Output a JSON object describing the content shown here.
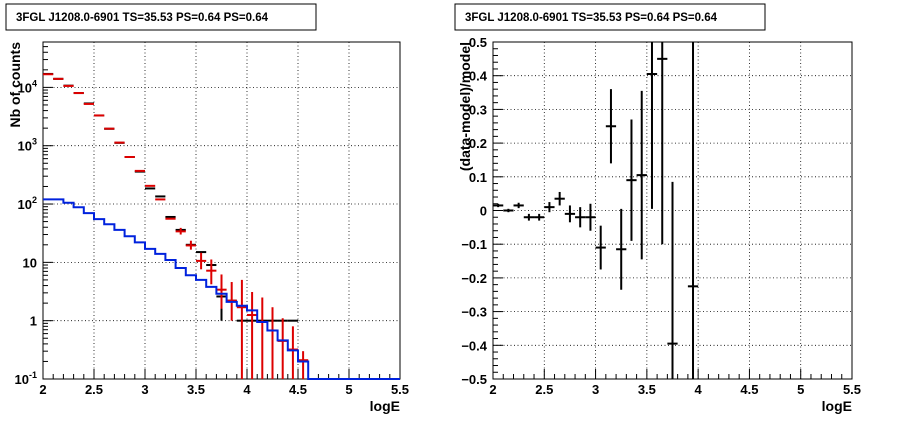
{
  "chart_data": [
    {
      "type": "scatter",
      "title": "3FGL J1208.0-6901 TS=35.53 PS=0.64 PS=0.64",
      "xlabel": "logE",
      "ylabel": "Nb of counts",
      "xlim": [
        2,
        5.5
      ],
      "ylim": [
        0.1,
        60000
      ],
      "yscale": "log",
      "grid": true,
      "x_ticks": [
        "2",
        "2.5",
        "3",
        "3.5",
        "4",
        "4.5",
        "5",
        "5.5"
      ],
      "y_ticks": [
        {
          "value": 0.1,
          "label": "10",
          "exp": "-1"
        },
        {
          "value": 1,
          "label": "1",
          "exp": ""
        },
        {
          "value": 10,
          "label": "10",
          "exp": ""
        },
        {
          "value": 100,
          "label": "10",
          "exp": "2"
        },
        {
          "value": 1000,
          "label": "10",
          "exp": "3"
        },
        {
          "value": 10000,
          "label": "10",
          "exp": "4"
        }
      ],
      "series": [
        {
          "kind": "data_points",
          "color": "#000000",
          "x": [
            2.05,
            2.15,
            2.25,
            2.35,
            2.45,
            2.55,
            2.65,
            2.75,
            2.85,
            2.95,
            3.05,
            3.15,
            3.25,
            3.35,
            3.45,
            3.55,
            3.65,
            3.75,
            3.85,
            3.95,
            4.05,
            4.15,
            4.25,
            4.35,
            4.45
          ],
          "y": [
            17000,
            14000,
            10700,
            8000,
            5300,
            3300,
            1950,
            1120,
            640,
            360,
            185,
            135,
            60,
            36,
            20,
            15,
            9,
            2.6,
            2.2,
            1,
            1,
            1,
            1,
            1,
            1
          ],
          "xerr": 0.05,
          "yerr_lo": [
            0,
            0,
            0,
            0,
            0,
            0,
            0,
            0,
            0,
            0,
            0,
            0,
            0,
            0,
            0,
            0,
            0,
            1.6,
            0,
            0,
            0,
            0,
            0,
            0,
            0
          ],
          "yerr_hi": [
            0,
            0,
            0,
            0,
            0,
            0,
            0,
            0,
            0,
            0,
            0,
            0,
            0,
            0,
            0,
            0,
            0,
            2.4,
            0,
            0,
            0,
            0,
            0,
            0,
            0
          ]
        },
        {
          "kind": "model_points",
          "color": "#dd0000",
          "x": [
            2.05,
            2.15,
            2.25,
            2.35,
            2.45,
            2.55,
            2.65,
            2.75,
            2.85,
            2.95,
            3.05,
            3.15,
            3.25,
            3.35,
            3.45,
            3.55,
            3.65,
            3.75,
            3.85,
            3.95,
            4.05,
            4.15,
            4.25,
            4.35,
            4.45,
            4.55
          ],
          "y": [
            16800,
            14000,
            10600,
            8000,
            5200,
            3300,
            1960,
            1130,
            640,
            370,
            205,
            120,
            56,
            34,
            19.5,
            10.6,
            7.2,
            3.4,
            2.2,
            1.7,
            1.25,
            0.95,
            0.68,
            0.45,
            0.32,
            0.21
          ],
          "xerr": 0.05,
          "yerr_lo": [
            0,
            0,
            0,
            0,
            0,
            0,
            0,
            0,
            0,
            0,
            0,
            0,
            0,
            4,
            3,
            3,
            3,
            1.8,
            1.2,
            1.7,
            1.15,
            0.85,
            0.58,
            0.35,
            0.22,
            0.11
          ],
          "yerr_hi": [
            0,
            0,
            0,
            0,
            0,
            0,
            0,
            0,
            0,
            0,
            0,
            0,
            0,
            5,
            4,
            4,
            4,
            2.8,
            2.4,
            3.3,
            1.85,
            1.55,
            1.02,
            0.65,
            0.48,
            0.09
          ]
        },
        {
          "kind": "step_line",
          "color": "#0022dd",
          "edges": [
            2.0,
            2.1,
            2.2,
            2.3,
            2.4,
            2.5,
            2.6,
            2.7,
            2.8,
            2.9,
            3.0,
            3.1,
            3.2,
            3.3,
            3.4,
            3.5,
            3.6,
            3.7,
            3.8,
            3.9,
            4.0,
            4.1,
            4.2,
            4.3,
            4.4,
            4.5,
            4.6,
            4.7,
            4.8,
            4.9,
            5.0,
            5.1,
            5.2,
            5.3,
            5.4,
            5.5
          ],
          "values": [
            120,
            120,
            105,
            88,
            70,
            55,
            45,
            36,
            28,
            22,
            17,
            14,
            11,
            8,
            6,
            5,
            3.8,
            2.9,
            2.1,
            1.8,
            1.5,
            0.95,
            0.68,
            0.46,
            0.31,
            0.2,
            0.1,
            0.1,
            0.1,
            0.1,
            0.1,
            0.1,
            0.1,
            0.1,
            0.1
          ]
        }
      ]
    },
    {
      "type": "scatter",
      "title": "3FGL J1208.0-6901 TS=35.53 PS=0.64 PS=0.64",
      "xlabel": "logE",
      "ylabel": "(data-model)/model",
      "xlim": [
        2,
        5.5
      ],
      "ylim": [
        -0.5,
        0.5
      ],
      "grid": true,
      "x_ticks": [
        "2",
        "2.5",
        "3",
        "3.5",
        "4",
        "4.5",
        "5",
        "5.5"
      ],
      "y_ticks": [
        "−0.5",
        "−0.4",
        "−0.3",
        "−0.2",
        "−0.1",
        "0",
        "0.1",
        "0.2",
        "0.3",
        "0.4",
        "0.5"
      ],
      "series": [
        {
          "kind": "residuals",
          "color": "#000000",
          "x": [
            2.05,
            2.15,
            2.25,
            2.35,
            2.45,
            2.55,
            2.65,
            2.75,
            2.85,
            2.95,
            3.05,
            3.15,
            3.25,
            3.35,
            3.45,
            3.55,
            3.65,
            3.75,
            3.95
          ],
          "y": [
            0.015,
            0.0,
            0.015,
            -0.02,
            -0.02,
            0.01,
            0.035,
            -0.01,
            -0.02,
            -0.02,
            -0.11,
            0.25,
            -0.115,
            0.09,
            0.105,
            0.405,
            0.45,
            -0.395,
            -0.225
          ],
          "xerr": 0.05,
          "yerr_lo": [
            0.005,
            0.005,
            0.008,
            0.01,
            0.01,
            0.015,
            0.02,
            0.025,
            0.03,
            0.04,
            0.065,
            0.11,
            0.12,
            0.18,
            0.25,
            0.4,
            0.55,
            0.5,
            0.5
          ],
          "yerr_hi": [
            0.005,
            0.005,
            0.008,
            0.01,
            0.01,
            0.015,
            0.02,
            0.025,
            0.03,
            0.04,
            0.065,
            0.11,
            0.12,
            0.18,
            0.25,
            0.4,
            0.55,
            0.48,
            0.8
          ]
        }
      ]
    }
  ]
}
